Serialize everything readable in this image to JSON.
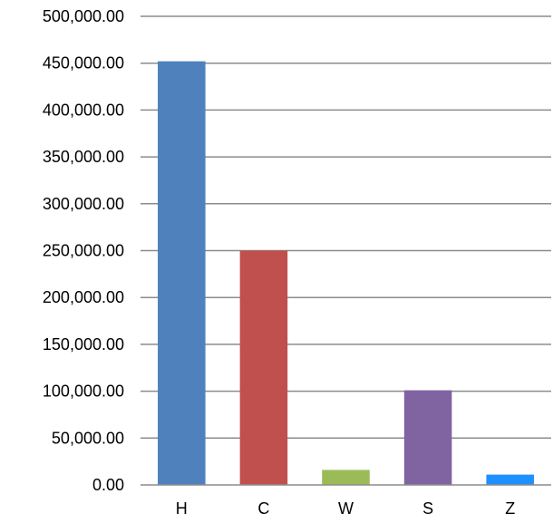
{
  "chart_data": {
    "type": "bar",
    "categories": [
      "H",
      "C",
      "W",
      "S",
      "Z"
    ],
    "values": [
      452000,
      250000,
      16000,
      101000,
      11000
    ],
    "colors": [
      "#4f81bd",
      "#c0504d",
      "#9bbb59",
      "#8064a2",
      "#1e90ff"
    ],
    "title": "",
    "xlabel": "",
    "ylabel": "",
    "ylim": [
      0,
      500000
    ],
    "yticks": [
      0,
      50000,
      100000,
      150000,
      200000,
      250000,
      300000,
      350000,
      400000,
      450000,
      500000
    ],
    "ytick_labels": [
      "0.00",
      "50,000.00",
      "100,000.00",
      "150,000.00",
      "200,000.00",
      "250,000.00",
      "300,000.00",
      "350,000.00",
      "400,000.00",
      "450,000.00",
      "500,000.00"
    ],
    "grid": true,
    "legend": "none"
  }
}
